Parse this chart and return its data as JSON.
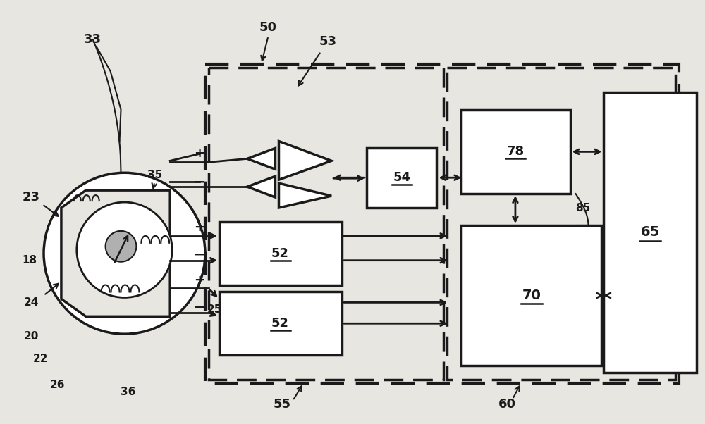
{
  "bg_color": "#e8e6e1",
  "line_color": "#1a1a1a",
  "box_color": "#ffffff",
  "fig_width": 10.0,
  "fig_height": 6.02
}
